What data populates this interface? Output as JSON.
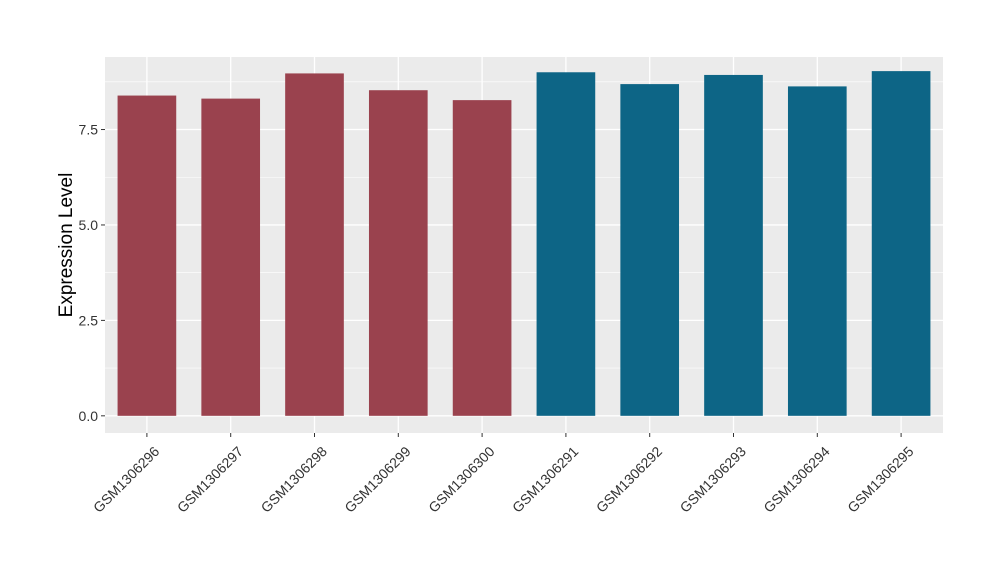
{
  "chart_data": {
    "type": "bar",
    "ylabel": "Expression Level",
    "xlabel": "",
    "categories": [
      "GSM1306296",
      "GSM1306297",
      "GSM1306298",
      "GSM1306299",
      "GSM1306300",
      "GSM1306291",
      "GSM1306292",
      "GSM1306293",
      "GSM1306294",
      "GSM1306295"
    ],
    "values": [
      8.39,
      8.31,
      8.97,
      8.53,
      8.27,
      9.0,
      8.69,
      8.93,
      8.63,
      9.03
    ],
    "bar_colors": [
      "#9a424e",
      "#9a424e",
      "#9a424e",
      "#9a424e",
      "#9a424e",
      "#0d6586",
      "#0d6586",
      "#0d6586",
      "#0d6586",
      "#0d6586"
    ],
    "ylim": [
      -0.45,
      9.4
    ],
    "yticks": [
      0.0,
      2.5,
      5.0,
      7.5
    ],
    "ytick_labels": [
      "0.0",
      "2.5",
      "5.0",
      "7.5"
    ],
    "grid": true,
    "panel_background": "#ebebeb",
    "grid_color": "#ffffff"
  }
}
